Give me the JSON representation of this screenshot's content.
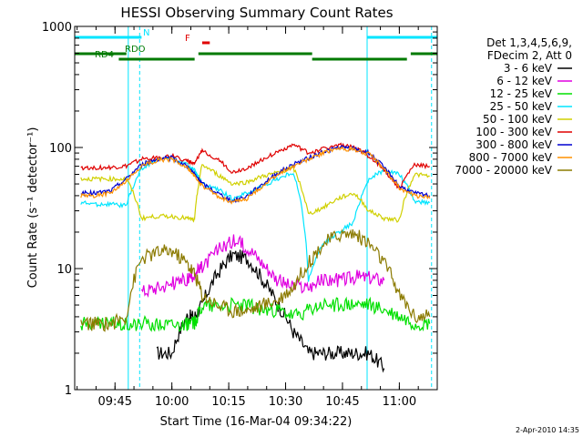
{
  "chart_data": {
    "type": "line",
    "title": "HESSI Observing Summary Count Rates",
    "xlabel": "Start Time (16-Mar-04 09:34:22)",
    "ylabel": "Count Rate (s⁻¹ detector⁻¹)",
    "yscale": "log",
    "ylim": [
      1,
      1000
    ],
    "xlim": [
      "09:34:22",
      "11:10:00"
    ],
    "x_ticks": [
      "09:45",
      "10:00",
      "10:15",
      "10:30",
      "10:45",
      "11:00"
    ],
    "y_ticks": [
      "1",
      "10",
      "100",
      "1000"
    ],
    "legend_placement": "right",
    "legend_header": [
      "Det 1,3,4,5,6,9,",
      "FDecim 2, Att 0"
    ],
    "footer_date": "2-Apr-2010 14:35",
    "flags": [
      {
        "label": "N",
        "color": "#00e5ff",
        "segments": [
          [
            "09:34:22",
            "09:52:00"
          ],
          [
            "10:51:30",
            "11:10:00"
          ]
        ]
      },
      {
        "label": "F",
        "color": "#e00000",
        "segments": [
          [
            "10:08:00",
            "10:10:00"
          ]
        ]
      },
      {
        "label": "RDO",
        "color": "#007a00",
        "segments": [
          [
            "09:34:22",
            "09:48:00"
          ],
          [
            "10:07:00",
            "10:37:00"
          ],
          [
            "11:03:00",
            "11:10:00"
          ]
        ]
      },
      {
        "label": "RD4",
        "color": "#007a00",
        "segments": [
          [
            "09:46:00",
            "10:06:00"
          ],
          [
            "10:37:00",
            "11:02:00"
          ]
        ]
      }
    ],
    "solid_vlines": [
      "09:48:30",
      "10:51:30"
    ],
    "dashed_vlines": [
      "09:51:30",
      "11:08:30"
    ],
    "x": [
      "09:36",
      "09:40",
      "09:44",
      "09:48",
      "09:52",
      "09:56",
      "10:00",
      "10:04",
      "10:06",
      "10:08",
      "10:12",
      "10:16",
      "10:20",
      "10:24",
      "10:28",
      "10:32",
      "10:36",
      "10:40",
      "10:44",
      "10:48",
      "10:52",
      "10:56",
      "11:00",
      "11:04",
      "11:08"
    ],
    "series": [
      {
        "name": "3 - 6 keV",
        "color": "#000000",
        "values": [
          null,
          null,
          null,
          null,
          null,
          2,
          2,
          4,
          4,
          5,
          9,
          13,
          12,
          8,
          5,
          3,
          2,
          2,
          2,
          2,
          2,
          1.5,
          null,
          null,
          null
        ]
      },
      {
        "name": "6 - 12 keV",
        "color": "#e000e0",
        "values": [
          null,
          null,
          null,
          null,
          6.5,
          7,
          7.5,
          8,
          9,
          10,
          14,
          17,
          15,
          11,
          8,
          7,
          7,
          8,
          8,
          8.5,
          8.5,
          8,
          null,
          null,
          null
        ]
      },
      {
        "name": "12 - 25 keV",
        "color": "#00e000",
        "values": [
          3.5,
          3.5,
          3.5,
          3.5,
          3.5,
          3.5,
          3.5,
          3.5,
          3.5,
          5,
          5,
          5,
          5,
          4.5,
          4.5,
          4,
          4.5,
          5,
          5,
          5,
          5,
          4.5,
          4,
          3.5,
          3.5
        ]
      },
      {
        "name": "25 - 50 keV",
        "color": "#00e5ff",
        "values": [
          35,
          34,
          34,
          33,
          66,
          80,
          82,
          72,
          64,
          50,
          45,
          38,
          42,
          48,
          55,
          62,
          8,
          16,
          20,
          24,
          55,
          65,
          60,
          36,
          35
        ]
      },
      {
        "name": "50 - 100 keV",
        "color": "#d0d000",
        "values": [
          55,
          55,
          55,
          55,
          26,
          27,
          27,
          26,
          25,
          72,
          60,
          50,
          52,
          58,
          62,
          68,
          28,
          32,
          38,
          42,
          30,
          26,
          25,
          60,
          58
        ]
      },
      {
        "name": "100 - 300 keV",
        "color": "#e00000",
        "values": [
          68,
          68,
          68,
          70,
          80,
          82,
          85,
          78,
          72,
          95,
          80,
          62,
          68,
          80,
          92,
          105,
          90,
          98,
          105,
          100,
          85,
          65,
          45,
          72,
          70
        ]
      },
      {
        "name": "300 - 800 keV",
        "color": "#0000d0",
        "values": [
          42,
          42,
          44,
          55,
          72,
          80,
          82,
          70,
          60,
          50,
          42,
          36,
          40,
          50,
          62,
          72,
          82,
          92,
          100,
          98,
          90,
          68,
          48,
          42,
          40
        ]
      },
      {
        "name": "800 - 7000 keV",
        "color": "#ff9000",
        "values": [
          40,
          40,
          42,
          52,
          70,
          78,
          80,
          68,
          58,
          48,
          40,
          35,
          38,
          48,
          60,
          70,
          80,
          90,
          98,
          96,
          88,
          66,
          46,
          40,
          38
        ]
      },
      {
        "name": "7000 - 20000 keV",
        "color": "#8b7a00",
        "values": [
          3.5,
          3.5,
          3.5,
          4,
          12,
          13.5,
          14,
          11,
          9,
          6,
          5,
          4.5,
          4.5,
          5,
          5.5,
          7,
          11,
          16,
          19,
          19.5,
          16,
          11,
          6,
          4,
          4
        ]
      }
    ]
  }
}
